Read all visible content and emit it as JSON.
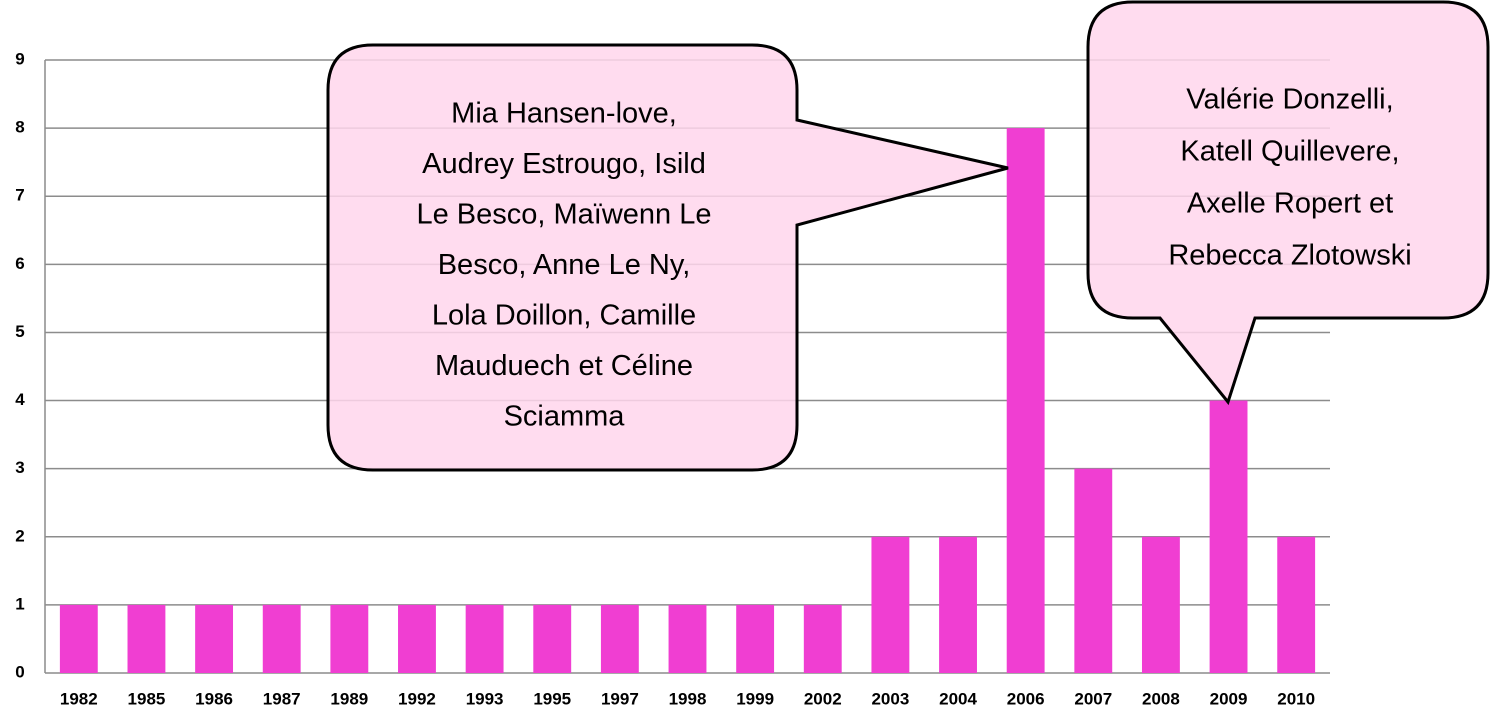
{
  "chart_data": {
    "type": "bar",
    "categories": [
      "1982",
      "1985",
      "1986",
      "1987",
      "1989",
      "1992",
      "1993",
      "1995",
      "1997",
      "1998",
      "1999",
      "2002",
      "2003",
      "2004",
      "2006",
      "2007",
      "2008",
      "2009",
      "2010"
    ],
    "values": [
      1,
      1,
      1,
      1,
      1,
      1,
      1,
      1,
      1,
      1,
      1,
      1,
      2,
      2,
      8,
      3,
      2,
      4,
      2
    ],
    "color": "#f03ed2",
    "ylim": [
      0,
      9
    ],
    "yticks": [
      0,
      1,
      2,
      3,
      4,
      5,
      6,
      7,
      8,
      9
    ],
    "grid": true,
    "annotations": [
      {
        "lines": [
          "Mia Hansen-love,",
          "Audrey Estrougo, Isild",
          "Le Besco, Maïwenn Le",
          "Besco, Anne Le Ny,",
          "Lola Doillon, Camille",
          "Mauduech et Céline",
          "Sciamma"
        ]
      },
      {
        "lines": [
          "Valérie Donzelli,",
          "Katell Quillevere,",
          "Axelle Ropert et",
          "Rebecca Zlotowski"
        ]
      }
    ]
  }
}
